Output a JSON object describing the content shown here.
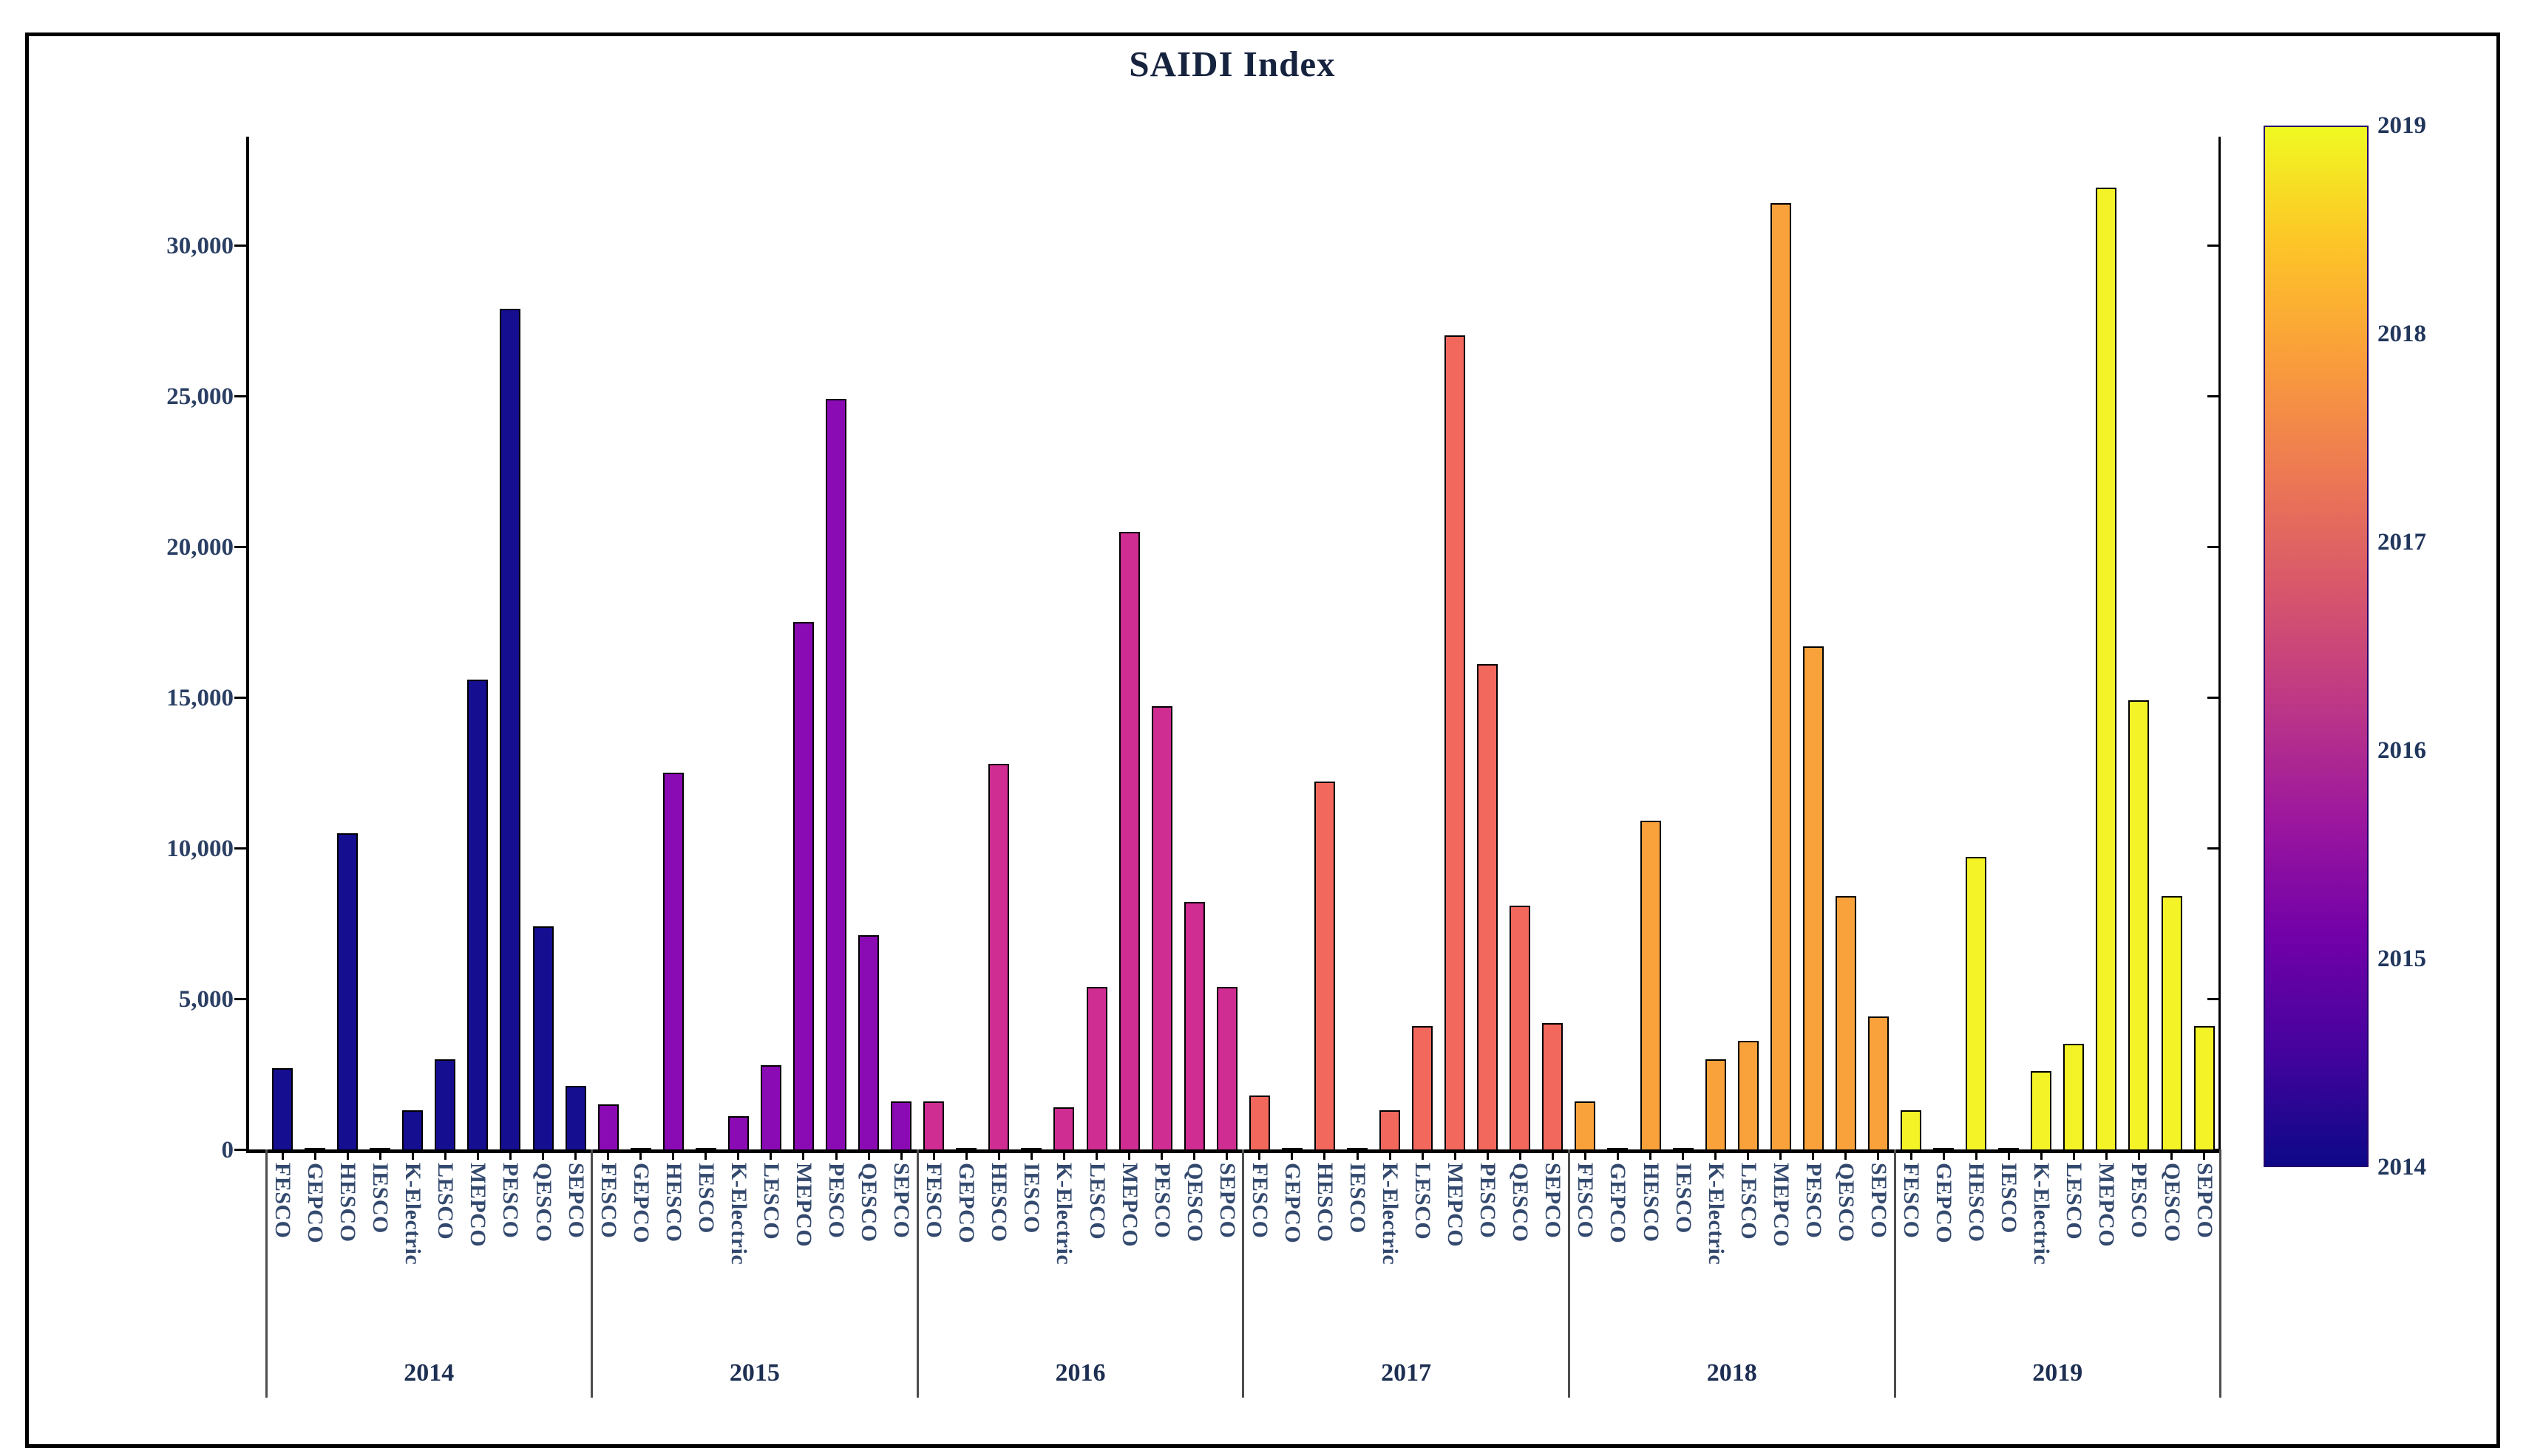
{
  "title": "SAIDI Index",
  "colors": {
    "background": "#ffffff",
    "frame_border": "#000000",
    "axis": "#000000",
    "separator": "#4d4d4d",
    "title_text": "#16233f",
    "tick_text": "#2a3f63",
    "category_text": "#33496e",
    "year_text": "#1d2f52"
  },
  "chart_data": {
    "type": "bar",
    "title": "SAIDI Index",
    "xlabel": "",
    "ylabel": "",
    "ylim": [
      0,
      30000
    ],
    "yticks": [
      0,
      5000,
      10000,
      15000,
      20000,
      25000,
      30000
    ],
    "ytick_labels": [
      "0",
      "5,000",
      "10,000",
      "15,000",
      "20,000",
      "25,000",
      "30,000"
    ],
    "grid": false,
    "legend_position": "colorbar-right",
    "categories": [
      "FESCO",
      "GEPCO",
      "HESCO",
      "IESCO",
      "K-Electric",
      "LESCO",
      "MEPCO",
      "PESCO",
      "QESCO",
      "SEPCO"
    ],
    "series": [
      {
        "name": "2014",
        "color": "#150e90",
        "values": [
          2700,
          40,
          10500,
          40,
          1300,
          3000,
          15600,
          27900,
          7400,
          2100
        ]
      },
      {
        "name": "2015",
        "color": "#8a0bb4",
        "values": [
          1500,
          40,
          12500,
          40,
          1100,
          2800,
          17500,
          24900,
          7100,
          1600
        ]
      },
      {
        "name": "2016",
        "color": "#d02d92",
        "values": [
          1600,
          40,
          12800,
          40,
          1400,
          5400,
          20500,
          14700,
          8200,
          5400
        ]
      },
      {
        "name": "2017",
        "color": "#f3685d",
        "values": [
          1800,
          40,
          12200,
          40,
          1300,
          4100,
          27000,
          16100,
          8100,
          4200
        ]
      },
      {
        "name": "2018",
        "color": "#f9a23c",
        "values": [
          1600,
          40,
          10900,
          40,
          3000,
          3600,
          31400,
          16700,
          8400,
          4400
        ]
      },
      {
        "name": "2019",
        "color": "#f3f327",
        "values": [
          1300,
          40,
          9700,
          40,
          2600,
          3500,
          31900,
          14900,
          8400,
          4100
        ]
      }
    ],
    "colorbar": {
      "labels_top_to_bottom": [
        "2019",
        "2018",
        "2017",
        "2016",
        "2015",
        "2014"
      ],
      "gradient_bottom_to_top": [
        "#0d0887",
        "#45039e",
        "#7201a8",
        "#9c179e",
        "#bd3786",
        "#d8576b",
        "#ed7953",
        "#fa9e3b",
        "#fdc527",
        "#f0f921"
      ]
    }
  }
}
